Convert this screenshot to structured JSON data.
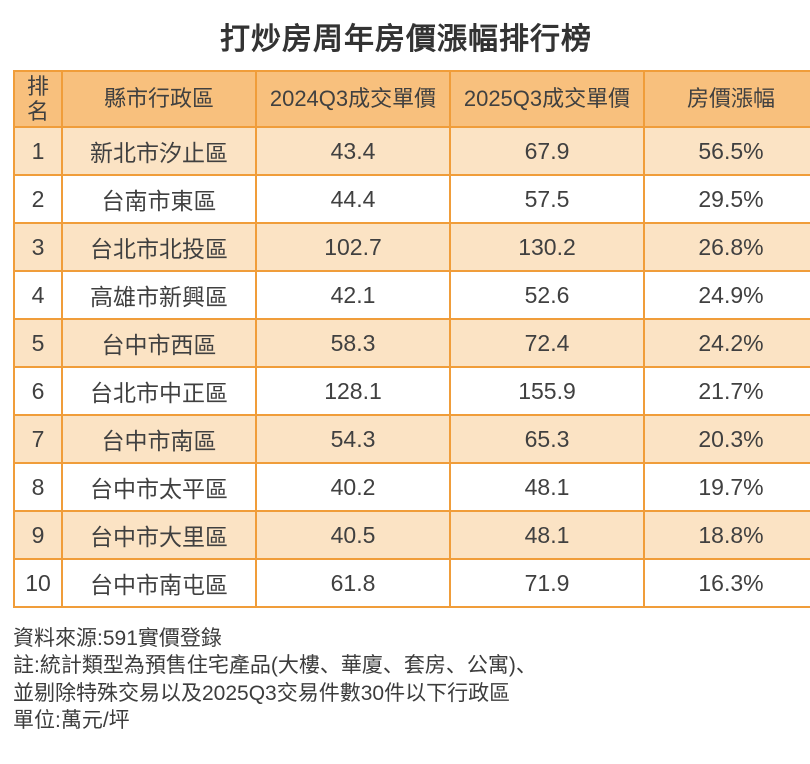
{
  "title": "打炒房周年房價漲幅排行榜",
  "chart_data": {
    "type": "table",
    "title": "打炒房周年房價漲幅排行榜",
    "columns": [
      "排名",
      "縣市行政區",
      "2024Q3成交單價",
      "2025Q3成交單價",
      "房價漲幅"
    ],
    "rows": [
      [
        "1",
        "新北市汐止區",
        "43.4",
        "67.9",
        "56.5%"
      ],
      [
        "2",
        "台南市東區",
        "44.4",
        "57.5",
        "29.5%"
      ],
      [
        "3",
        "台北市北投區",
        "102.7",
        "130.2",
        "26.8%"
      ],
      [
        "4",
        "高雄市新興區",
        "42.1",
        "52.6",
        "24.9%"
      ],
      [
        "5",
        "台中市西區",
        "58.3",
        "72.4",
        "24.2%"
      ],
      [
        "6",
        "台北市中正區",
        "128.1",
        "155.9",
        "21.7%"
      ],
      [
        "7",
        "台中市南區",
        "54.3",
        "65.3",
        "20.3%"
      ],
      [
        "8",
        "台中市太平區",
        "40.2",
        "48.1",
        "19.7%"
      ],
      [
        "9",
        "台中市大里區",
        "40.5",
        "48.1",
        "18.8%"
      ],
      [
        "10",
        "台中市南屯區",
        "61.8",
        "71.9",
        "16.3%"
      ]
    ],
    "unit": "萬元/坪",
    "source": "591實價登錄"
  },
  "footer": {
    "lines": [
      "資料來源:591實價登錄",
      "註:統計類型為預售住宅產品(大樓、華廈、套房、公寓)、",
      "並剔除特殊交易以及2025Q3交易件數30件以下行政區",
      "單位:萬元/坪"
    ]
  },
  "colors": {
    "header_bg": "#F8C07D",
    "row_alt_bg": "#FBE3C4",
    "border": "#F09D3A",
    "text": "#404040",
    "title_text": "#333333"
  }
}
